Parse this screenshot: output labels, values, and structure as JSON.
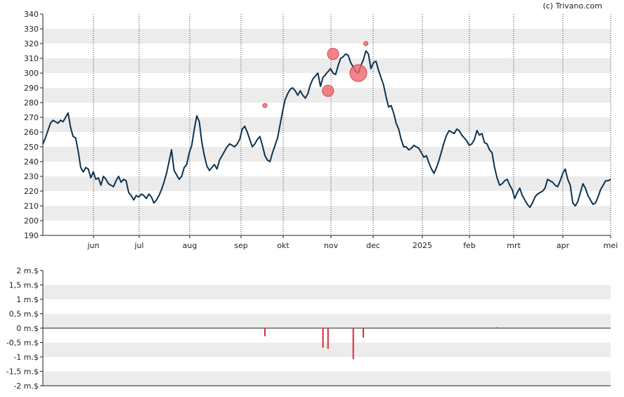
{
  "credit": "(c) Trivano.com",
  "colors": {
    "price_line": "#0d3350",
    "band": "#ececec",
    "marker": "#f2646e",
    "marker_stroke": "#d9404c",
    "bar_negative": "#e0253a",
    "bar_positive": "#1a6e5e"
  },
  "chart_data": [
    {
      "type": "line",
      "title": "",
      "xlabel": "",
      "ylabel": "",
      "ylim": [
        190,
        340
      ],
      "yticks": [
        "190",
        "200",
        "210",
        "220",
        "230",
        "240",
        "250",
        "260",
        "270",
        "280",
        "290",
        "300",
        "310",
        "320",
        "330",
        "340"
      ],
      "x_ticks": [
        "jun",
        "jul",
        "aug",
        "sep",
        "okt",
        "nov",
        "dec",
        "2025",
        "feb",
        "mrt",
        "apr",
        "mei"
      ],
      "grid": "alternating horizontal bands, dotted vertical lines at month ticks",
      "series": [
        {
          "values": [
            252,
            256,
            261,
            266,
            268,
            267,
            266,
            268,
            267,
            270,
            273,
            263,
            257,
            256,
            247,
            236,
            233,
            236,
            235,
            229,
            233,
            228,
            229,
            224,
            230,
            228,
            225,
            224,
            223,
            227,
            230,
            226,
            228,
            227,
            219,
            217,
            214,
            217,
            216,
            218,
            217,
            215,
            218,
            216,
            212,
            214,
            217,
            221,
            226,
            232,
            240,
            248,
            234,
            231,
            228,
            230,
            236,
            238,
            246,
            251,
            262,
            271,
            267,
            253,
            244,
            237,
            234,
            236,
            238,
            235,
            241,
            244,
            247,
            250,
            252,
            251,
            250,
            252,
            255,
            262,
            264,
            260,
            255,
            250,
            252,
            255,
            257,
            251,
            244,
            241,
            240,
            246,
            251,
            256,
            265,
            274,
            282,
            286,
            289,
            290,
            288,
            285,
            288,
            285,
            283,
            286,
            292,
            296,
            298,
            300,
            291,
            297,
            299,
            301,
            303,
            300,
            299,
            305,
            310,
            311,
            313,
            312,
            307,
            304,
            301,
            300,
            305,
            309,
            315,
            313,
            303,
            307,
            308,
            302,
            297,
            292,
            284,
            277,
            278,
            273,
            266,
            262,
            255,
            250,
            250,
            248,
            249,
            251,
            250,
            249,
            246,
            243,
            244,
            239,
            235,
            232,
            236,
            241,
            247,
            253,
            258,
            261,
            260,
            259,
            262,
            261,
            258,
            256,
            254,
            251,
            252,
            255,
            261,
            258,
            259,
            253,
            252,
            248,
            246,
            236,
            229,
            224,
            225,
            227,
            228,
            224,
            221,
            215,
            219,
            222,
            217,
            214,
            211,
            209,
            212,
            216,
            218,
            219,
            220,
            222,
            228,
            227,
            226,
            224,
            223,
            227,
            232,
            235,
            228,
            224,
            212,
            210,
            213,
            219,
            225,
            222,
            217,
            214,
            211,
            212,
            216,
            221,
            224,
            227,
            227,
            228
          ]
        }
      ],
      "markers": [
        {
          "x_index": 88,
          "value": 278,
          "size": "small"
        },
        {
          "x_index": 113,
          "value": 288,
          "size": "medium"
        },
        {
          "x_index": 115,
          "value": 313,
          "size": "medium"
        },
        {
          "x_index": 125,
          "value": 300,
          "size": "large"
        },
        {
          "x_index": 128,
          "value": 320,
          "size": "small"
        }
      ]
    },
    {
      "type": "bar",
      "title": "",
      "ylim": [
        -2,
        2
      ],
      "yticks": [
        "2 m.$",
        "1,5 m.$",
        "1 m.$",
        "0,5 m.$",
        "0 m.$",
        "-0,5 m.$",
        "-1 m.$",
        "-1,5 m.$",
        "-2 m.$"
      ],
      "bars": [
        {
          "x_index": 88,
          "value": -0.28
        },
        {
          "x_index": 111,
          "value": -0.68
        },
        {
          "x_index": 113,
          "value": -0.72
        },
        {
          "x_index": 123,
          "value": -1.08
        },
        {
          "x_index": 127,
          "value": -0.33
        },
        {
          "x_index": 180,
          "value": 0.03
        }
      ]
    }
  ]
}
